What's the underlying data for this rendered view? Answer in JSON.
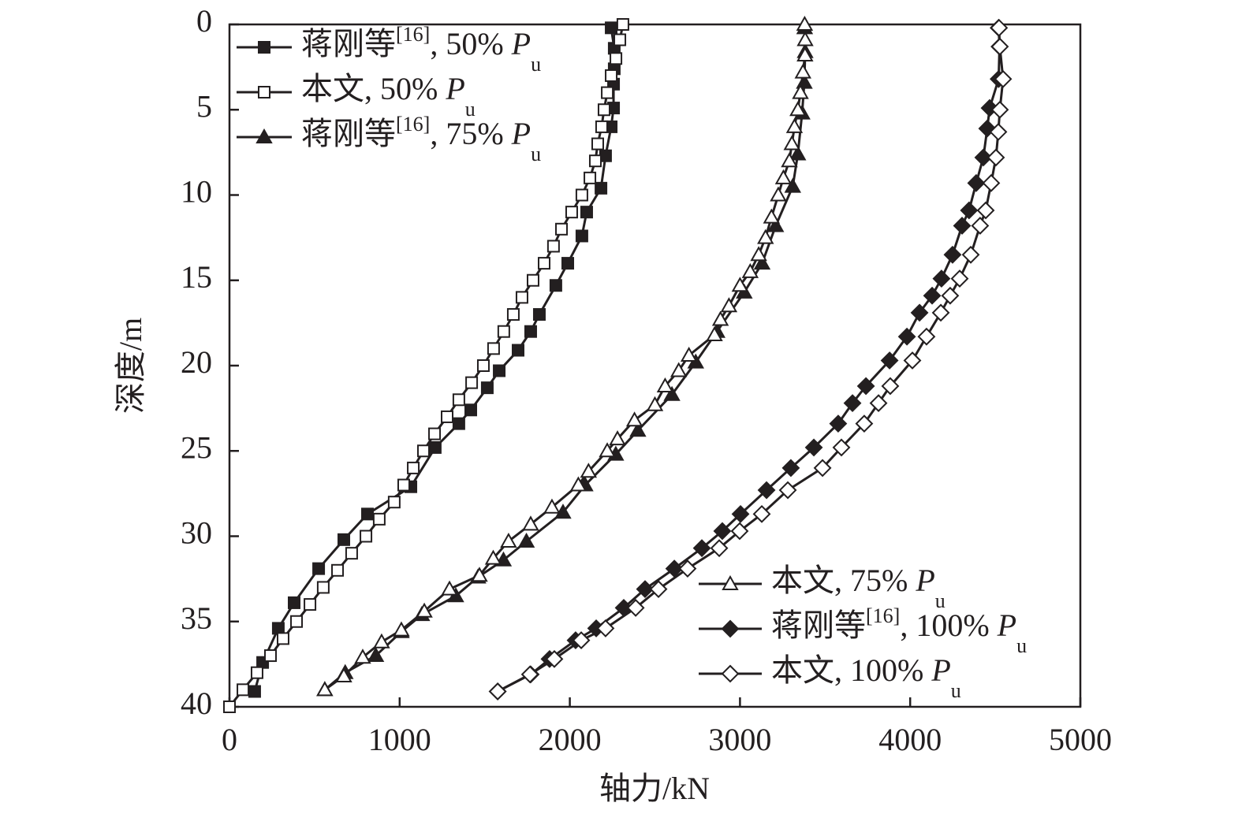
{
  "chart_data": {
    "type": "line",
    "xlabel": "轴力/kN",
    "ylabel": "深度/m",
    "xlim": [
      0,
      5000
    ],
    "xticks": [
      0,
      1000,
      2000,
      3000,
      4000,
      5000
    ],
    "ylim": [
      0,
      40
    ],
    "yticks": [
      0,
      5,
      10,
      15,
      20,
      25,
      30,
      35,
      40
    ],
    "y_inverted": true,
    "series": [
      {
        "name": "蒋刚等[16], 50% Pu",
        "color": "#231f20",
        "marker": "square",
        "filled": true,
        "legend_loc": "upper left",
        "x": [
          2243,
          2261,
          2261,
          2257,
          2257,
          2243,
          2210,
          2183,
          2099,
          2071,
          1988,
          1918,
          1821,
          1770,
          1696,
          1585,
          1515,
          1418,
          1348,
          1209,
          1066,
          811,
          672,
          524,
          380,
          287,
          195,
          148
        ],
        "y": [
          0.2,
          1.4,
          2.6,
          3.5,
          4.9,
          6.0,
          7.7,
          9.6,
          11.0,
          12.4,
          14.0,
          15.3,
          17.0,
          18.0,
          19.1,
          20.3,
          21.3,
          22.6,
          23.4,
          24.8,
          27.1,
          28.7,
          30.2,
          31.9,
          33.9,
          35.4,
          37.4,
          39.1
        ]
      },
      {
        "name": "本文, 50% Pu",
        "color": "#231f20",
        "marker": "square",
        "filled": false,
        "legend_loc": "upper left",
        "x": [
          2312,
          2294,
          2271,
          2243,
          2220,
          2201,
          2187,
          2164,
          2150,
          2118,
          2071,
          2011,
          1951,
          1904,
          1849,
          1784,
          1719,
          1668,
          1612,
          1552,
          1492,
          1423,
          1348,
          1279,
          1205,
          1140,
          1080,
          1024,
          968,
          880,
          802,
          718,
          635,
          551,
          473,
          394,
          315,
          241,
          162,
          79,
          0
        ],
        "y": [
          0,
          0.9,
          2.0,
          3.0,
          4.0,
          5.0,
          6.0,
          7.0,
          8.0,
          9.0,
          10.0,
          11.0,
          12.0,
          13.0,
          14.0,
          15.0,
          16.0,
          17.0,
          18.0,
          19.0,
          20.0,
          21.0,
          22.0,
          23.0,
          24.0,
          25.0,
          26.0,
          27.0,
          28.0,
          29.0,
          30.0,
          31.0,
          32.0,
          33.0,
          34.0,
          35.0,
          36.0,
          37.0,
          38.0,
          39.0,
          40.0
        ]
      },
      {
        "name": "蒋刚等[16], 75% Pu",
        "color": "#231f20",
        "marker": "triangle",
        "filled": true,
        "legend_loc": "upper left",
        "x": [
          3380,
          3383,
          3378,
          3365,
          3340,
          3310,
          3210,
          3130,
          3025,
          2865,
          2740,
          2600,
          2400,
          2270,
          2090,
          1960,
          1745,
          1610,
          1460,
          1330,
          1130,
          1010,
          860,
          680,
          560
        ],
        "y": [
          0.2,
          1.6,
          3.4,
          5.2,
          7.6,
          9.5,
          11.8,
          14.0,
          15.7,
          18.0,
          19.8,
          21.7,
          23.8,
          25.2,
          27.0,
          28.6,
          30.3,
          31.4,
          32.4,
          33.5,
          34.6,
          35.6,
          37.0,
          38.0,
          39.0
        ]
      },
      {
        "name": "本文, 75% Pu",
        "color": "#231f20",
        "marker": "triangle",
        "filled": false,
        "legend_loc": "lower right",
        "x": [
          3380,
          3383,
          3382,
          3370,
          3355,
          3340,
          3320,
          3305,
          3290,
          3255,
          3225,
          3185,
          3150,
          3110,
          3060,
          3000,
          2935,
          2885,
          2850,
          2700,
          2640,
          2560,
          2500,
          2380,
          2280,
          2220,
          2110,
          2050,
          1895,
          1770,
          1640,
          1550,
          1469,
          1293,
          1145,
          1010,
          894,
          783,
          672,
          560
        ],
        "y": [
          0,
          0.9,
          1.8,
          2.8,
          4.0,
          5.0,
          6.0,
          7.0,
          8.0,
          9.0,
          10.0,
          11.3,
          12.5,
          13.5,
          14.5,
          15.3,
          16.5,
          17.3,
          18.2,
          19.4,
          20.3,
          21.2,
          22.3,
          23.2,
          24.3,
          25.0,
          26.2,
          27.0,
          28.3,
          29.3,
          30.3,
          31.3,
          32.3,
          33.1,
          34.4,
          35.5,
          36.2,
          37.1,
          38.2,
          39.0
        ]
      },
      {
        "name": "蒋刚等[16], 100% Pu",
        "color": "#231f20",
        "marker": "diamond",
        "filled": true,
        "legend_loc": "lower right",
        "x": [
          4520,
          4525,
          4520,
          4467,
          4453,
          4430,
          4388,
          4346,
          4305,
          4249,
          4184,
          4129,
          4055,
          3981,
          3879,
          3740,
          3661,
          3577,
          3434,
          3299,
          3156,
          3003,
          2896,
          2776,
          2614,
          2442,
          2317,
          2155,
          2034,
          1881,
          1770,
          1576
        ],
        "y": [
          0.2,
          1.3,
          3.2,
          4.9,
          6.1,
          7.8,
          9.3,
          10.9,
          11.8,
          13.5,
          14.9,
          15.9,
          16.9,
          18.3,
          19.7,
          21.2,
          22.2,
          23.4,
          24.8,
          26.0,
          27.3,
          28.7,
          29.7,
          30.7,
          31.9,
          33.1,
          34.2,
          35.4,
          36.1,
          37.2,
          38.1,
          39.1
        ]
      },
      {
        "name": "本文, 100% Pu",
        "color": "#231f20",
        "marker": "diamond",
        "filled": false,
        "legend_loc": "lower right",
        "x": [
          4522,
          4527,
          4546,
          4527,
          4518,
          4504,
          4476,
          4444,
          4411,
          4356,
          4291,
          4235,
          4180,
          4096,
          4013,
          3883,
          3814,
          3730,
          3596,
          3485,
          3281,
          3128,
          2998,
          2878,
          2692,
          2521,
          2387,
          2210,
          2067,
          1909,
          1766,
          1576
        ],
        "y": [
          0.2,
          1.3,
          3.2,
          5.0,
          6.3,
          7.8,
          9.3,
          10.9,
          11.8,
          13.5,
          14.9,
          15.9,
          16.9,
          18.3,
          19.7,
          21.2,
          22.2,
          23.4,
          24.8,
          26.0,
          27.3,
          28.7,
          29.7,
          30.7,
          31.9,
          33.1,
          34.2,
          35.4,
          36.1,
          37.2,
          38.1,
          39.1
        ]
      }
    ]
  }
}
